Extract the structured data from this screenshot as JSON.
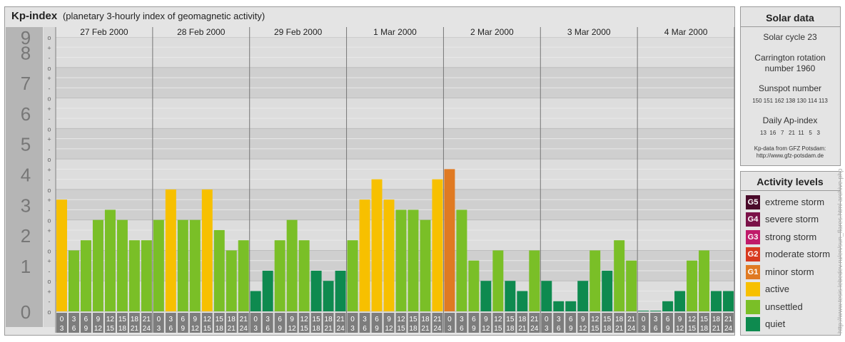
{
  "title": {
    "main": "Kp-index",
    "sub": "(planetary 3-hourly index of geomagnetic activity)"
  },
  "chart_data": {
    "type": "bar",
    "title": "Kp-index",
    "subtitle": "(planetary 3-hourly index of geomagnetic activity)",
    "ylim": [
      0,
      9
    ],
    "yticks": [
      "0",
      "1",
      "2",
      "3",
      "4",
      "5",
      "6",
      "7",
      "8",
      "9"
    ],
    "minor_ticks": [
      "-",
      "+",
      "o"
    ],
    "days": [
      "27 Feb 2000",
      "28 Feb 2000",
      "29 Feb 2000",
      "1 Mar 2000",
      "2 Mar 2000",
      "3 Mar 2000",
      "4 Mar 2000"
    ],
    "interval_top": [
      "0",
      "3",
      "6",
      "9",
      "12",
      "15",
      "18",
      "21"
    ],
    "interval_bottom": [
      "3",
      "6",
      "9",
      "12",
      "15",
      "18",
      "21",
      "24"
    ],
    "values": [
      [
        3.667,
        2.0,
        2.333,
        3.0,
        3.333,
        3.0,
        2.333,
        2.333
      ],
      [
        3.0,
        4.0,
        3.0,
        3.0,
        4.0,
        2.667,
        2.0,
        2.333
      ],
      [
        0.667,
        1.333,
        2.333,
        3.0,
        2.333,
        1.333,
        1.0,
        1.333
      ],
      [
        2.333,
        3.667,
        4.333,
        3.667,
        3.333,
        3.333,
        3.0,
        4.333
      ],
      [
        4.667,
        3.333,
        1.667,
        1.0,
        2.0,
        1.0,
        0.667,
        2.0
      ],
      [
        1.0,
        0.333,
        0.333,
        1.0,
        2.0,
        1.333,
        2.333,
        1.667
      ],
      [
        0.0,
        0.0,
        0.333,
        0.667,
        1.667,
        2.0,
        0.667,
        0.667
      ]
    ],
    "levels": [
      "quiet",
      "unsettled",
      "active",
      "minor storm"
    ],
    "level_colors": {
      "quiet": "#0e8a4f",
      "unsettled": "#7abf27",
      "active": "#f7c000",
      "minor storm": "#e07a22"
    }
  },
  "solar_data": {
    "heading": "Solar data",
    "cycle": "Solar cycle 23",
    "carrington_line1": "Carrington rotation",
    "carrington_line2": "number 1960",
    "sunspot_label": "Sunspot number",
    "sunspot_values": "150 151 162 138 130 114 113",
    "ap_label": "Daily Ap-index",
    "ap_values": "13  16   7   21  11   5   3",
    "source_line1": "Kp-data from GFZ Potsdam:",
    "source_line2": "http://www.gfz-potsdam.de"
  },
  "activity_levels": {
    "heading": "Activity levels",
    "items": [
      {
        "badge": "G5",
        "label": "extreme storm",
        "color": "#4a0a2a"
      },
      {
        "badge": "G4",
        "label": "severe storm",
        "color": "#7a1248"
      },
      {
        "badge": "G3",
        "label": "strong storm",
        "color": "#c01a6a"
      },
      {
        "badge": "G2",
        "label": "moderate storm",
        "color": "#d83a1f"
      },
      {
        "badge": "G1",
        "label": "minor storm",
        "color": "#e07a22"
      },
      {
        "badge": "",
        "label": "active",
        "color": "#f7c000"
      },
      {
        "badge": "",
        "label": "unsettled",
        "color": "#7abf27"
      },
      {
        "badge": "",
        "label": "quiet",
        "color": "#0e8a4f"
      }
    ]
  },
  "credit": "http://www.tesis.lebedev.ru/en/sun_flares.html  archive.php"
}
